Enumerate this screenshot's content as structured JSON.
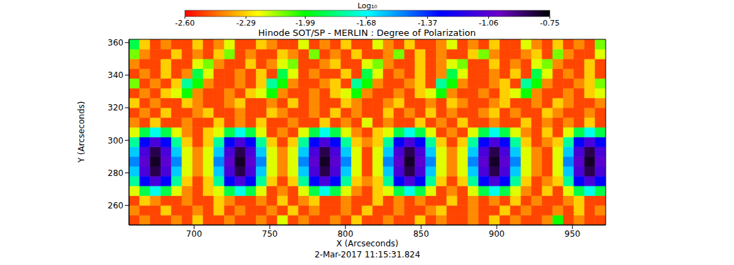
{
  "chart_data": {
    "type": "heatmap",
    "title": "Hinode SOT/SP - MERLIN : Degree of Polarization",
    "xlabel": "X (Arcseconds)",
    "ylabel": "Y (Arcseconds)",
    "annotations": [
      "2-Mar-2017 11:15:31.824"
    ],
    "xlim": [
      657,
      972
    ],
    "xticks": [
      700,
      750,
      800,
      850,
      900,
      950
    ],
    "ylim": [
      248,
      362
    ],
    "yticks": [
      260,
      280,
      300,
      320,
      340,
      360
    ],
    "colorbar": {
      "label": "Log₁₀",
      "range": [
        -2.6,
        -0.75
      ],
      "ticks": [
        {
          "value": -2.6,
          "label": "-2.60"
        },
        {
          "value": -2.29,
          "label": "-2.29"
        },
        {
          "value": -1.99,
          "label": "-1.99"
        },
        {
          "value": -1.68,
          "label": "-1.68"
        },
        {
          "value": -1.37,
          "label": "-1.37"
        },
        {
          "value": -1.06,
          "label": "-1.06"
        },
        {
          "value": -0.75,
          "label": "-0.75"
        }
      ]
    },
    "x": [
      660.5,
      667.5,
      674.5,
      681.5,
      688.5,
      695.5,
      702.5,
      709.5,
      716.5,
      723.5,
      730.5,
      737.5,
      744.5,
      751.5,
      758.5,
      765.5,
      772.5,
      779.5,
      786.5,
      793.5,
      800.5,
      807.5,
      814.5,
      821.5,
      828.5,
      835.5,
      842.5,
      849.5,
      856.5,
      863.5,
      870.5,
      877.5,
      884.5,
      891.5,
      898.5,
      905.5,
      912.5,
      919.5,
      926.5,
      933.5,
      940.5,
      947.5,
      954.5,
      961.5,
      968.5
    ],
    "y": [
      251,
      257,
      263,
      269,
      275,
      281,
      287,
      293,
      299,
      305,
      311,
      317,
      323,
      329,
      335,
      341,
      347,
      353,
      359
    ],
    "cells": [
      [
        -2.5,
        -2.4,
        -2.5,
        -2.5,
        -2.4,
        -2.5,
        -2.3,
        -2.5,
        -2.5,
        -2.4,
        -2.5,
        -2.5,
        -2.4,
        -2.5,
        -2.2,
        -2.5,
        -2.4,
        -2.5,
        -2.5,
        -2.4,
        -2.5,
        -2.3,
        -2.5,
        -2.5,
        -2.4,
        -2.5,
        -2.5,
        -2.3,
        -2.5,
        -2.4,
        -2.5,
        -2.5,
        -2.4,
        -2.5,
        -2.3,
        -2.5,
        -2.4,
        -2.5,
        -2.5,
        -2.4,
        -2.0,
        -2.5,
        -2.4,
        -2.5,
        -2.5
      ],
      [
        -2.4,
        -2.5,
        -2.5,
        -2.3,
        -2.5,
        -2.5,
        -2.4,
        -2.5,
        -2.3,
        -2.5,
        -2.4,
        -2.5,
        -2.5,
        -2.4,
        -2.5,
        -2.3,
        -2.5,
        -2.4,
        -2.5,
        -2.5,
        -2.4,
        -2.5,
        -2.3,
        -2.5,
        -2.5,
        -2.4,
        -2.5,
        -2.5,
        -2.4,
        -2.3,
        -2.5,
        -2.5,
        -2.4,
        -2.5,
        -2.5,
        -2.3,
        -2.5,
        -2.4,
        -2.5,
        -2.5,
        -2.4,
        -2.5,
        -2.3,
        -2.5,
        -2.4
      ],
      [
        -2.5,
        -2.3,
        -2.4,
        -2.5,
        -2.5,
        -2.4,
        -2.5,
        -2.5,
        -2.3,
        -2.4,
        -2.5,
        -2.5,
        -2.4,
        -2.5,
        -2.3,
        -2.5,
        -2.4,
        -2.3,
        -2.5,
        -2.5,
        -2.4,
        -2.5,
        -2.5,
        -2.3,
        -2.5,
        -2.4,
        -2.5,
        -2.4,
        -2.5,
        -2.5,
        -2.3,
        -2.5,
        -2.4,
        -2.5,
        -2.4,
        -2.5,
        -2.3,
        -2.5,
        -2.4,
        -2.5,
        -2.5,
        -2.4,
        -2.3,
        -2.5,
        -2.5
      ],
      [
        -2.2,
        -1.9,
        -1.7,
        -1.9,
        -2.2,
        -2.4,
        -2.5,
        -2.3,
        -2.2,
        -1.9,
        -1.7,
        -1.9,
        -2.2,
        -2.5,
        -2.4,
        -2.5,
        -2.2,
        -1.9,
        -1.7,
        -1.9,
        -2.2,
        -2.4,
        -2.5,
        -2.3,
        -2.2,
        -1.9,
        -1.7,
        -1.9,
        -2.2,
        -2.5,
        -2.4,
        -2.5,
        -2.2,
        -1.9,
        -1.7,
        -1.9,
        -2.2,
        -2.4,
        -2.5,
        -2.3,
        -2.5,
        -2.2,
        -1.9,
        -1.7,
        -1.9
      ],
      [
        -1.8,
        -1.3,
        -1.1,
        -1.3,
        -1.8,
        -2.3,
        -2.5,
        -2.3,
        -1.8,
        -1.3,
        -1.1,
        -1.3,
        -1.8,
        -2.3,
        -2.5,
        -2.3,
        -1.8,
        -1.3,
        -1.1,
        -1.3,
        -1.8,
        -2.3,
        -2.4,
        -2.3,
        -1.8,
        -1.3,
        -1.1,
        -1.3,
        -1.8,
        -2.3,
        -2.5,
        -2.3,
        -1.8,
        -1.3,
        -1.1,
        -1.3,
        -1.8,
        -2.3,
        -2.5,
        -2.4,
        -2.3,
        -1.8,
        -1.3,
        -1.1,
        -1.3
      ],
      [
        -1.6,
        -1.1,
        -0.85,
        -1.1,
        -1.6,
        -2.2,
        -2.4,
        -2.2,
        -1.6,
        -1.1,
        -0.85,
        -1.1,
        -1.6,
        -2.2,
        -2.4,
        -2.2,
        -1.6,
        -1.1,
        -0.85,
        -1.1,
        -1.6,
        -2.2,
        -2.5,
        -2.2,
        -1.6,
        -1.1,
        -0.85,
        -1.1,
        -1.6,
        -2.2,
        -2.4,
        -2.2,
        -1.6,
        -1.1,
        -0.85,
        -1.1,
        -1.6,
        -2.2,
        -2.4,
        -2.5,
        -2.2,
        -1.6,
        -1.1,
        -0.85,
        -1.1
      ],
      [
        -1.5,
        -1.05,
        -0.8,
        -1.05,
        -1.5,
        -2.2,
        -2.4,
        -2.2,
        -1.5,
        -1.05,
        -0.8,
        -1.05,
        -1.5,
        -2.2,
        -2.4,
        -2.2,
        -1.5,
        -1.05,
        -0.8,
        -1.05,
        -1.5,
        -2.2,
        -2.5,
        -2.2,
        -1.5,
        -1.05,
        -0.8,
        -1.05,
        -1.5,
        -2.2,
        -2.4,
        -2.2,
        -1.5,
        -1.05,
        -0.8,
        -1.05,
        -1.5,
        -2.2,
        -2.4,
        -2.5,
        -2.2,
        -1.5,
        -1.05,
        -0.8,
        -1.05
      ],
      [
        -1.6,
        -1.1,
        -0.85,
        -1.1,
        -1.6,
        -2.2,
        -2.4,
        -2.2,
        -1.6,
        -1.1,
        -0.85,
        -1.1,
        -1.6,
        -2.2,
        -2.4,
        -2.2,
        -1.6,
        -1.1,
        -0.85,
        -1.1,
        -1.6,
        -2.2,
        -2.5,
        -2.2,
        -1.6,
        -1.1,
        -0.85,
        -1.1,
        -1.6,
        -2.2,
        -2.4,
        -2.2,
        -1.6,
        -1.1,
        -0.85,
        -1.1,
        -1.6,
        -2.2,
        -2.4,
        -2.5,
        -2.2,
        -1.6,
        -1.1,
        -0.85,
        -1.1
      ],
      [
        -1.8,
        -1.3,
        -1.1,
        -1.3,
        -1.8,
        -2.3,
        -2.5,
        -2.3,
        -1.8,
        -1.3,
        -1.1,
        -1.3,
        -1.8,
        -2.3,
        -2.5,
        -2.3,
        -1.8,
        -1.3,
        -1.1,
        -1.3,
        -1.8,
        -2.3,
        -2.4,
        -2.3,
        -1.8,
        -1.3,
        -1.1,
        -1.3,
        -1.8,
        -2.3,
        -2.5,
        -2.3,
        -1.8,
        -1.3,
        -1.1,
        -1.3,
        -1.8,
        -2.3,
        -2.5,
        -2.4,
        -2.3,
        -1.8,
        -1.3,
        -1.1,
        -1.3
      ],
      [
        -2.2,
        -1.9,
        -1.7,
        -1.9,
        -2.2,
        -2.4,
        -2.5,
        -2.3,
        -2.2,
        -1.9,
        -1.7,
        -1.9,
        -2.2,
        -2.5,
        -2.4,
        -2.5,
        -2.2,
        -1.9,
        -1.7,
        -1.9,
        -2.2,
        -2.4,
        -2.5,
        -2.3,
        -2.2,
        -1.9,
        -1.7,
        -1.9,
        -2.2,
        -2.5,
        -2.4,
        -2.5,
        -2.2,
        -1.9,
        -1.7,
        -1.9,
        -2.2,
        -2.4,
        -2.5,
        -2.3,
        -2.5,
        -2.2,
        -1.9,
        -1.7,
        -1.9
      ],
      [
        -2.4,
        -2.5,
        -2.3,
        -2.5,
        -2.5,
        -2.4,
        -2.5,
        -2.5,
        -2.3,
        -2.5,
        -2.4,
        -2.5,
        -2.3,
        -2.5,
        -2.5,
        -2.4,
        -2.5,
        -2.5,
        -2.3,
        -2.5,
        -2.4,
        -2.5,
        -2.2,
        -2.5,
        -2.4,
        -2.5,
        -2.5,
        -2.3,
        -2.5,
        -2.4,
        -2.5,
        -2.3,
        -2.5,
        -2.5,
        -2.4,
        -2.5,
        -2.5,
        -2.3,
        -2.5,
        -2.4,
        -2.5,
        -2.4,
        -2.5,
        -2.3,
        -2.5
      ],
      [
        -2.5,
        -2.4,
        -2.5,
        -2.3,
        -2.5,
        -2.5,
        -2.4,
        -2.3,
        -2.5,
        -2.5,
        -2.4,
        -2.5,
        -2.5,
        -2.3,
        -2.4,
        -2.5,
        -2.5,
        -2.4,
        -2.5,
        -2.3,
        -2.5,
        -2.4,
        -2.5,
        -2.5,
        -2.3,
        -2.5,
        -2.4,
        -2.5,
        -2.3,
        -2.5,
        -2.4,
        -2.5,
        -2.5,
        -2.4,
        -2.3,
        -2.5,
        -2.4,
        -2.5,
        -2.5,
        -2.3,
        -2.4,
        -2.5,
        -2.5,
        -2.4,
        -2.5
      ],
      [
        -2.3,
        -2.5,
        -2.4,
        -2.5,
        -2.5,
        -2.3,
        -2.4,
        -2.5,
        -2.5,
        -2.4,
        -2.3,
        -2.5,
        -2.5,
        -2.4,
        -2.5,
        -2.3,
        -2.5,
        -2.4,
        -2.5,
        -2.5,
        -2.3,
        -2.4,
        -2.5,
        -2.5,
        -2.4,
        -2.3,
        -2.5,
        -2.5,
        -2.4,
        -2.5,
        -2.3,
        -2.4,
        -2.5,
        -2.5,
        -2.4,
        -2.3,
        -2.5,
        -2.5,
        -2.4,
        -2.5,
        -2.3,
        -2.4,
        -2.5,
        -2.5,
        -2.4
      ],
      [
        -2.5,
        -2.4,
        -2.5,
        -2.3,
        -2.2,
        -2.0,
        -2.4,
        -2.5,
        -2.5,
        -2.4,
        -2.5,
        -2.3,
        -2.2,
        -2.0,
        -2.4,
        -2.5,
        -2.5,
        -2.4,
        -2.5,
        -2.3,
        -2.2,
        -2.0,
        -2.4,
        -2.5,
        -2.5,
        -2.4,
        -2.5,
        -2.3,
        -2.2,
        -2.0,
        -2.4,
        -2.5,
        -2.5,
        -2.4,
        -2.5,
        -2.3,
        -2.2,
        -2.0,
        -2.4,
        -2.5,
        -2.5,
        -2.4,
        -2.5,
        -2.3,
        -2.2
      ],
      [
        -2.1,
        -2.5,
        -2.4,
        -2.5,
        -2.3,
        -1.8,
        -2.0,
        -2.4,
        -2.5,
        -2.5,
        -2.4,
        -2.5,
        -2.3,
        -1.8,
        -2.0,
        -2.4,
        -2.5,
        -2.5,
        -2.4,
        -2.3,
        -2.5,
        -1.8,
        -2.0,
        -2.4,
        -2.5,
        -2.5,
        -2.4,
        -2.3,
        -2.5,
        -1.8,
        -2.0,
        -2.4,
        -2.5,
        -2.5,
        -2.4,
        -2.3,
        -2.5,
        -1.8,
        -2.0,
        -2.4,
        -2.5,
        -2.5,
        -2.4,
        -2.3,
        -2.1
      ],
      [
        -2.5,
        -2.4,
        -2.5,
        -2.3,
        -2.5,
        -2.4,
        -1.9,
        -2.2,
        -2.5,
        -2.5,
        -2.4,
        -2.5,
        -2.3,
        -2.5,
        -1.9,
        -2.2,
        -2.5,
        -2.4,
        -2.5,
        -2.5,
        -2.3,
        -2.5,
        -1.9,
        -2.2,
        -2.5,
        -2.4,
        -2.5,
        -2.3,
        -2.5,
        -2.4,
        -1.9,
        -2.2,
        -2.5,
        -2.5,
        -2.4,
        -2.5,
        -2.3,
        -2.5,
        -1.9,
        -2.2,
        -2.5,
        -2.4,
        -2.5,
        -2.3,
        -2.5
      ],
      [
        -2.4,
        -2.5,
        -2.5,
        -2.3,
        -2.5,
        -2.5,
        -2.2,
        -2.1,
        -2.4,
        -2.5,
        -2.5,
        -2.3,
        -2.5,
        -2.4,
        -2.2,
        -2.1,
        -2.5,
        -2.5,
        -2.4,
        -2.3,
        -2.5,
        -2.5,
        -2.2,
        -2.1,
        -2.4,
        -2.5,
        -2.5,
        -2.3,
        -2.5,
        -2.4,
        -2.2,
        -2.1,
        -2.5,
        -2.5,
        -2.3,
        -2.5,
        -2.4,
        -2.5,
        -2.2,
        -2.1,
        -2.4,
        -2.5,
        -2.5,
        -2.3,
        -2.5
      ],
      [
        -2.1,
        -2.4,
        -2.5,
        -2.5,
        -2.3,
        -2.5,
        -2.4,
        -2.5,
        -2.3,
        -2.1,
        -2.5,
        -2.4,
        -2.5,
        -2.5,
        -2.3,
        -2.4,
        -2.5,
        -2.1,
        -2.5,
        -2.4,
        -2.5,
        -2.3,
        -2.5,
        -2.5,
        -2.4,
        -2.1,
        -2.5,
        -2.3,
        -2.5,
        -2.4,
        -2.5,
        -2.5,
        -2.3,
        -2.1,
        -2.4,
        -2.5,
        -2.5,
        -2.4,
        -2.3,
        -2.5,
        -2.1,
        -2.4,
        -2.5,
        -2.5,
        -2.2
      ],
      [
        -1.9,
        -2.3,
        -2.5,
        -2.4,
        -2.5,
        -2.5,
        -2.3,
        -2.5,
        -2.4,
        -2.2,
        -2.5,
        -2.5,
        -2.3,
        -2.4,
        -2.5,
        -2.5,
        -2.2,
        -2.5,
        -2.4,
        -2.5,
        -2.3,
        -2.5,
        -2.5,
        -2.2,
        -2.4,
        -2.5,
        -2.3,
        -2.5,
        -2.5,
        -2.4,
        -2.2,
        -2.5,
        -2.4,
        -2.5,
        -2.3,
        -2.5,
        -2.5,
        -2.2,
        -2.4,
        -2.5,
        -2.3,
        -2.5,
        -2.4,
        -2.5,
        -2.1
      ]
    ]
  }
}
